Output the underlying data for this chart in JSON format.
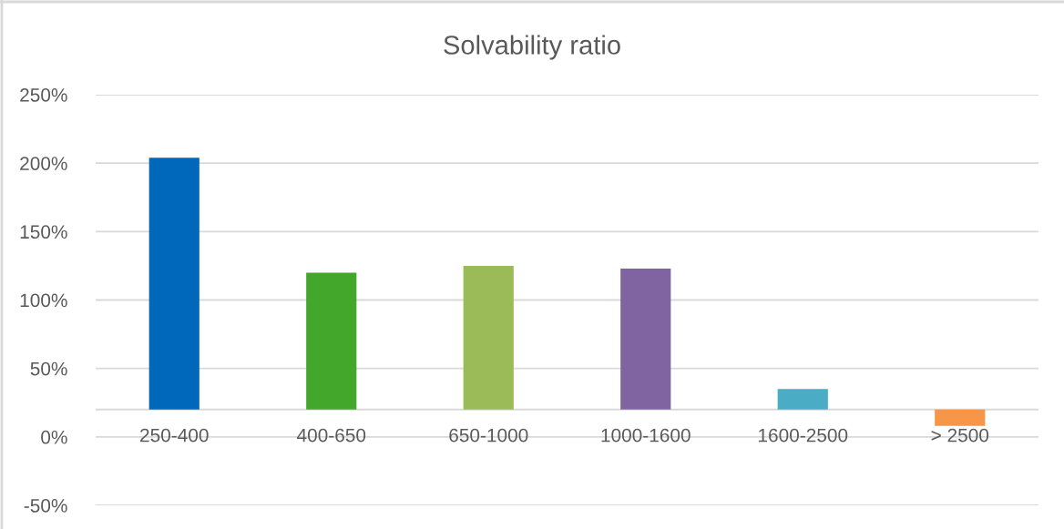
{
  "chart_data": {
    "type": "bar",
    "title": "Solvability ratio",
    "categories": [
      "250-400",
      "400-650",
      "650-1000",
      "1000-1600",
      "1600-2500",
      "> 2500"
    ],
    "base": [
      20,
      20,
      20,
      20,
      20,
      20
    ],
    "values": [
      184,
      100,
      105,
      103,
      15,
      -12
    ],
    "colors": [
      "#0068bb",
      "#43a72b",
      "#9bbb59",
      "#8064a2",
      "#4bacc6",
      "#f79646"
    ],
    "ylim": [
      -50,
      250
    ],
    "yticks": [
      {
        "value": -50,
        "label": "-50%"
      },
      {
        "value": 0,
        "label": "0%"
      },
      {
        "value": 50,
        "label": "50%"
      },
      {
        "value": 100,
        "label": "100%"
      },
      {
        "value": 150,
        "label": "150%"
      },
      {
        "value": 200,
        "label": "200%"
      },
      {
        "value": 250,
        "label": "250%"
      }
    ],
    "grid": "y"
  }
}
